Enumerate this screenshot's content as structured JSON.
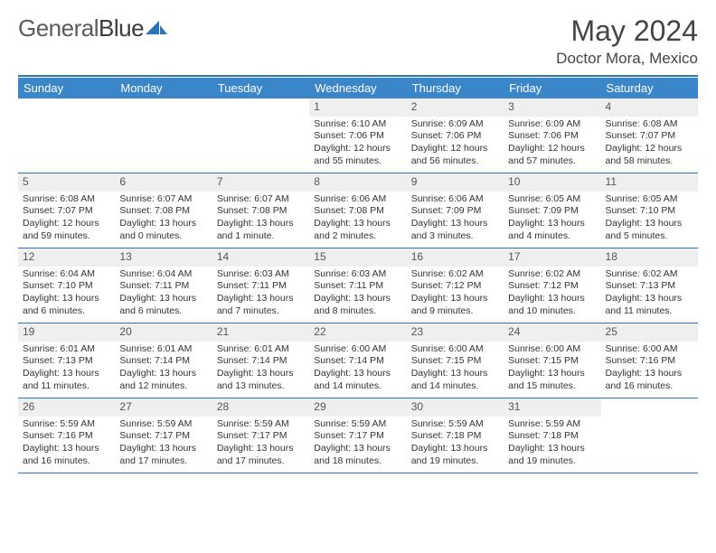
{
  "brand": {
    "part1": "General",
    "part2": "Blue"
  },
  "title": "May 2024",
  "subtitle": "Doctor Mora, Mexico",
  "colors": {
    "header_bg": "#3a86c8",
    "rule": "#2b74b9",
    "daynum_bg": "#efefef",
    "text": "#333333",
    "logo_blue": "#2b74b9"
  },
  "day_labels": [
    "Sunday",
    "Monday",
    "Tuesday",
    "Wednesday",
    "Thursday",
    "Friday",
    "Saturday"
  ],
  "weeks": [
    [
      {
        "empty": true
      },
      {
        "empty": true
      },
      {
        "empty": true
      },
      {
        "num": "1",
        "sunrise": "6:10 AM",
        "sunset": "7:06 PM",
        "daylight": "12 hours and 55 minutes."
      },
      {
        "num": "2",
        "sunrise": "6:09 AM",
        "sunset": "7:06 PM",
        "daylight": "12 hours and 56 minutes."
      },
      {
        "num": "3",
        "sunrise": "6:09 AM",
        "sunset": "7:06 PM",
        "daylight": "12 hours and 57 minutes."
      },
      {
        "num": "4",
        "sunrise": "6:08 AM",
        "sunset": "7:07 PM",
        "daylight": "12 hours and 58 minutes."
      }
    ],
    [
      {
        "num": "5",
        "sunrise": "6:08 AM",
        "sunset": "7:07 PM",
        "daylight": "12 hours and 59 minutes."
      },
      {
        "num": "6",
        "sunrise": "6:07 AM",
        "sunset": "7:08 PM",
        "daylight": "13 hours and 0 minutes."
      },
      {
        "num": "7",
        "sunrise": "6:07 AM",
        "sunset": "7:08 PM",
        "daylight": "13 hours and 1 minute."
      },
      {
        "num": "8",
        "sunrise": "6:06 AM",
        "sunset": "7:08 PM",
        "daylight": "13 hours and 2 minutes."
      },
      {
        "num": "9",
        "sunrise": "6:06 AM",
        "sunset": "7:09 PM",
        "daylight": "13 hours and 3 minutes."
      },
      {
        "num": "10",
        "sunrise": "6:05 AM",
        "sunset": "7:09 PM",
        "daylight": "13 hours and 4 minutes."
      },
      {
        "num": "11",
        "sunrise": "6:05 AM",
        "sunset": "7:10 PM",
        "daylight": "13 hours and 5 minutes."
      }
    ],
    [
      {
        "num": "12",
        "sunrise": "6:04 AM",
        "sunset": "7:10 PM",
        "daylight": "13 hours and 6 minutes."
      },
      {
        "num": "13",
        "sunrise": "6:04 AM",
        "sunset": "7:11 PM",
        "daylight": "13 hours and 6 minutes."
      },
      {
        "num": "14",
        "sunrise": "6:03 AM",
        "sunset": "7:11 PM",
        "daylight": "13 hours and 7 minutes."
      },
      {
        "num": "15",
        "sunrise": "6:03 AM",
        "sunset": "7:11 PM",
        "daylight": "13 hours and 8 minutes."
      },
      {
        "num": "16",
        "sunrise": "6:02 AM",
        "sunset": "7:12 PM",
        "daylight": "13 hours and 9 minutes."
      },
      {
        "num": "17",
        "sunrise": "6:02 AM",
        "sunset": "7:12 PM",
        "daylight": "13 hours and 10 minutes."
      },
      {
        "num": "18",
        "sunrise": "6:02 AM",
        "sunset": "7:13 PM",
        "daylight": "13 hours and 11 minutes."
      }
    ],
    [
      {
        "num": "19",
        "sunrise": "6:01 AM",
        "sunset": "7:13 PM",
        "daylight": "13 hours and 11 minutes."
      },
      {
        "num": "20",
        "sunrise": "6:01 AM",
        "sunset": "7:14 PM",
        "daylight": "13 hours and 12 minutes."
      },
      {
        "num": "21",
        "sunrise": "6:01 AM",
        "sunset": "7:14 PM",
        "daylight": "13 hours and 13 minutes."
      },
      {
        "num": "22",
        "sunrise": "6:00 AM",
        "sunset": "7:14 PM",
        "daylight": "13 hours and 14 minutes."
      },
      {
        "num": "23",
        "sunrise": "6:00 AM",
        "sunset": "7:15 PM",
        "daylight": "13 hours and 14 minutes."
      },
      {
        "num": "24",
        "sunrise": "6:00 AM",
        "sunset": "7:15 PM",
        "daylight": "13 hours and 15 minutes."
      },
      {
        "num": "25",
        "sunrise": "6:00 AM",
        "sunset": "7:16 PM",
        "daylight": "13 hours and 16 minutes."
      }
    ],
    [
      {
        "num": "26",
        "sunrise": "5:59 AM",
        "sunset": "7:16 PM",
        "daylight": "13 hours and 16 minutes."
      },
      {
        "num": "27",
        "sunrise": "5:59 AM",
        "sunset": "7:17 PM",
        "daylight": "13 hours and 17 minutes."
      },
      {
        "num": "28",
        "sunrise": "5:59 AM",
        "sunset": "7:17 PM",
        "daylight": "13 hours and 17 minutes."
      },
      {
        "num": "29",
        "sunrise": "5:59 AM",
        "sunset": "7:17 PM",
        "daylight": "13 hours and 18 minutes."
      },
      {
        "num": "30",
        "sunrise": "5:59 AM",
        "sunset": "7:18 PM",
        "daylight": "13 hours and 19 minutes."
      },
      {
        "num": "31",
        "sunrise": "5:59 AM",
        "sunset": "7:18 PM",
        "daylight": "13 hours and 19 minutes."
      },
      {
        "empty": true
      }
    ]
  ],
  "labels": {
    "sunrise": "Sunrise:",
    "sunset": "Sunset:",
    "daylight": "Daylight:"
  }
}
